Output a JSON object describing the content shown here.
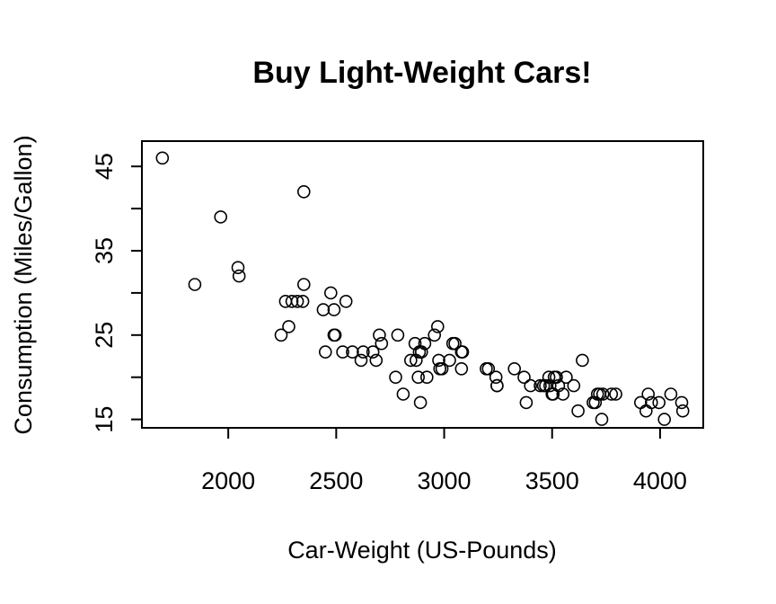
{
  "chart_data": {
    "type": "scatter",
    "title": "Buy Light-Weight Cars!",
    "xlabel": "Car-Weight (US-Pounds)",
    "ylabel": "Consumption (Miles/Gallon)",
    "xlim": [
      1600,
      4200
    ],
    "ylim": [
      14,
      48
    ],
    "x_ticks": [
      2000,
      2500,
      3000,
      3500,
      4000
    ],
    "y_ticks": [
      15,
      20,
      25,
      30,
      35,
      40,
      45
    ],
    "y_tick_labels": [
      "15",
      "",
      "25",
      "",
      "35",
      "",
      "45"
    ],
    "marker": "open-circle",
    "grid": false,
    "points": [
      {
        "x": 1695,
        "y": 46
      },
      {
        "x": 1845,
        "y": 31
      },
      {
        "x": 1965,
        "y": 39
      },
      {
        "x": 2045,
        "y": 33
      },
      {
        "x": 2050,
        "y": 32
      },
      {
        "x": 2245,
        "y": 25
      },
      {
        "x": 2265,
        "y": 29
      },
      {
        "x": 2280,
        "y": 26
      },
      {
        "x": 2295,
        "y": 29
      },
      {
        "x": 2320,
        "y": 29
      },
      {
        "x": 2345,
        "y": 29
      },
      {
        "x": 2350,
        "y": 31
      },
      {
        "x": 2350,
        "y": 42
      },
      {
        "x": 2440,
        "y": 28
      },
      {
        "x": 2450,
        "y": 23
      },
      {
        "x": 2475,
        "y": 30
      },
      {
        "x": 2490,
        "y": 28
      },
      {
        "x": 2490,
        "y": 25
      },
      {
        "x": 2495,
        "y": 25
      },
      {
        "x": 2530,
        "y": 23
      },
      {
        "x": 2545,
        "y": 29
      },
      {
        "x": 2575,
        "y": 23
      },
      {
        "x": 2615,
        "y": 22
      },
      {
        "x": 2625,
        "y": 23
      },
      {
        "x": 2670,
        "y": 23
      },
      {
        "x": 2685,
        "y": 22
      },
      {
        "x": 2700,
        "y": 25
      },
      {
        "x": 2710,
        "y": 24
      },
      {
        "x": 2775,
        "y": 20
      },
      {
        "x": 2785,
        "y": 25
      },
      {
        "x": 2810,
        "y": 18
      },
      {
        "x": 2845,
        "y": 22
      },
      {
        "x": 2865,
        "y": 24
      },
      {
        "x": 2870,
        "y": 22
      },
      {
        "x": 2880,
        "y": 20
      },
      {
        "x": 2885,
        "y": 23
      },
      {
        "x": 2890,
        "y": 17
      },
      {
        "x": 2895,
        "y": 23
      },
      {
        "x": 2910,
        "y": 24
      },
      {
        "x": 2920,
        "y": 20
      },
      {
        "x": 2955,
        "y": 25
      },
      {
        "x": 2970,
        "y": 26
      },
      {
        "x": 2975,
        "y": 22
      },
      {
        "x": 2980,
        "y": 21
      },
      {
        "x": 2990,
        "y": 21
      },
      {
        "x": 3025,
        "y": 22
      },
      {
        "x": 3040,
        "y": 24
      },
      {
        "x": 3050,
        "y": 24
      },
      {
        "x": 3080,
        "y": 23
      },
      {
        "x": 3080,
        "y": 21
      },
      {
        "x": 3085,
        "y": 23
      },
      {
        "x": 3195,
        "y": 21
      },
      {
        "x": 3205,
        "y": 21
      },
      {
        "x": 3240,
        "y": 20
      },
      {
        "x": 3245,
        "y": 19
      },
      {
        "x": 3245,
        "y": 19
      },
      {
        "x": 3325,
        "y": 21
      },
      {
        "x": 3370,
        "y": 20
      },
      {
        "x": 3380,
        "y": 17
      },
      {
        "x": 3400,
        "y": 19
      },
      {
        "x": 3445,
        "y": 19
      },
      {
        "x": 3460,
        "y": 19
      },
      {
        "x": 3470,
        "y": 19
      },
      {
        "x": 3485,
        "y": 20
      },
      {
        "x": 3490,
        "y": 19
      },
      {
        "x": 3500,
        "y": 18
      },
      {
        "x": 3505,
        "y": 18
      },
      {
        "x": 3510,
        "y": 20
      },
      {
        "x": 3520,
        "y": 20
      },
      {
        "x": 3530,
        "y": 19
      },
      {
        "x": 3550,
        "y": 18
      },
      {
        "x": 3565,
        "y": 20
      },
      {
        "x": 3600,
        "y": 19
      },
      {
        "x": 3620,
        "y": 16
      },
      {
        "x": 3640,
        "y": 22
      },
      {
        "x": 3690,
        "y": 17
      },
      {
        "x": 3700,
        "y": 17
      },
      {
        "x": 3710,
        "y": 18
      },
      {
        "x": 3720,
        "y": 18
      },
      {
        "x": 3730,
        "y": 15
      },
      {
        "x": 3735,
        "y": 18
      },
      {
        "x": 3775,
        "y": 18
      },
      {
        "x": 3795,
        "y": 18
      },
      {
        "x": 3910,
        "y": 17
      },
      {
        "x": 3935,
        "y": 16
      },
      {
        "x": 3945,
        "y": 18
      },
      {
        "x": 3960,
        "y": 17
      },
      {
        "x": 3995,
        "y": 17
      },
      {
        "x": 4020,
        "y": 15
      },
      {
        "x": 4050,
        "y": 18
      },
      {
        "x": 4100,
        "y": 17
      },
      {
        "x": 4105,
        "y": 16
      }
    ]
  }
}
